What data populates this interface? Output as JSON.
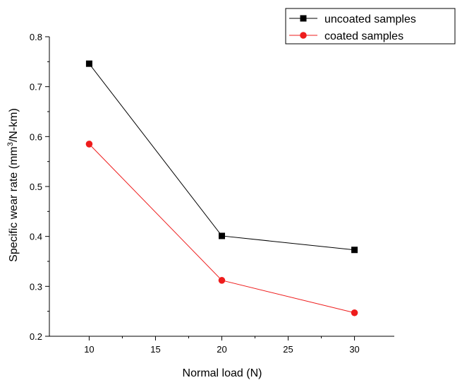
{
  "chart_data": {
    "type": "line",
    "title": "",
    "xlabel": "Normal load (N)",
    "ylabel": "Specific wear rate (mm",
    "ylabel_superscript": "3",
    "ylabel_suffix": "/N-km)",
    "xlim": [
      7,
      33
    ],
    "ylim": [
      0.2,
      0.8
    ],
    "x_ticks": [
      10,
      15,
      20,
      25,
      30
    ],
    "y_ticks": [
      0.2,
      0.3,
      0.4,
      0.5,
      0.6,
      0.7,
      0.8
    ],
    "x_tick_labels": [
      "10",
      "15",
      "20",
      "25",
      "30"
    ],
    "y_tick_labels": [
      "0.2",
      "0.3",
      "0.4",
      "0.5",
      "0.6",
      "0.7",
      "0.8"
    ],
    "grid": false,
    "legend_position": "top-right",
    "x": [
      10,
      20,
      30
    ],
    "series": [
      {
        "name": "uncoated samples",
        "values": [
          0.746,
          0.401,
          0.373
        ],
        "color": "#000000",
        "marker": "square"
      },
      {
        "name": "coated samples",
        "values": [
          0.585,
          0.312,
          0.247
        ],
        "color": "#ee1c1c",
        "marker": "circle"
      }
    ]
  }
}
